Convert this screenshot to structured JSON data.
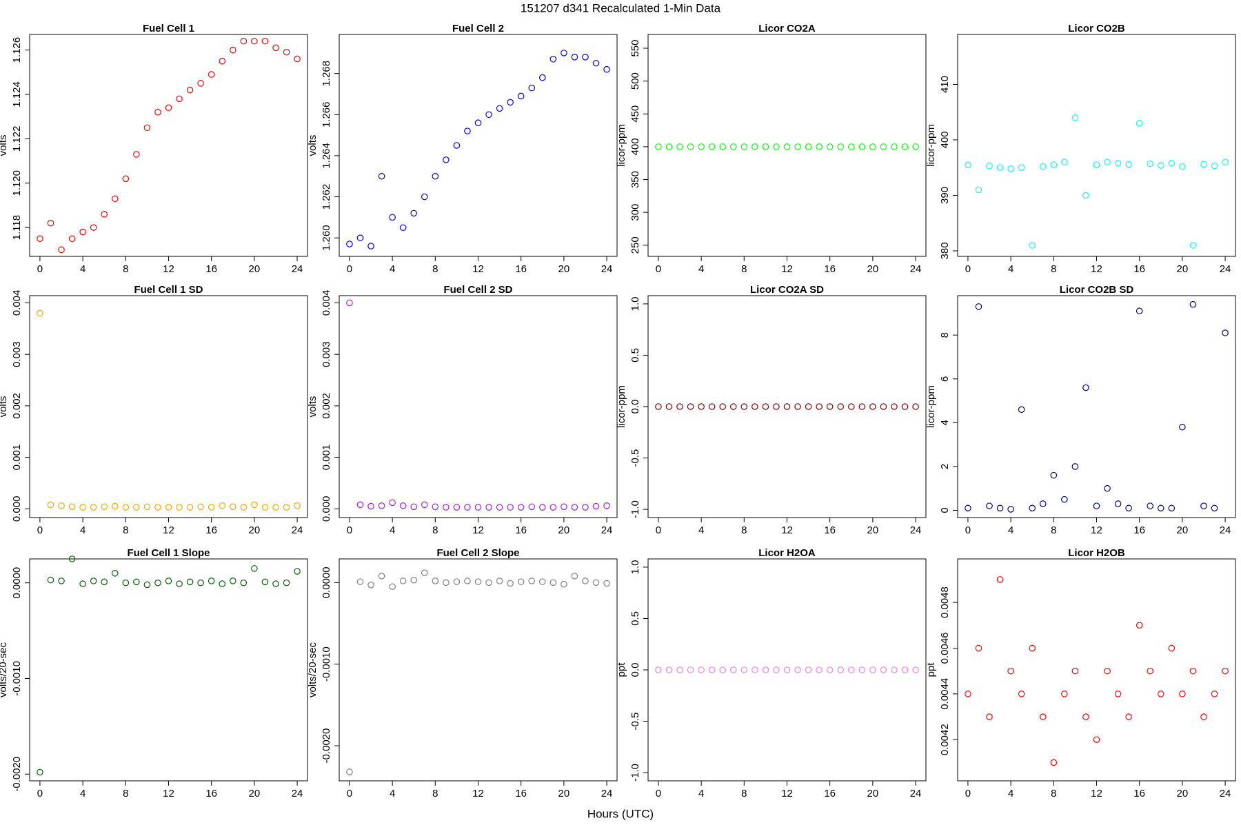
{
  "title": "151207   d341   Recalculated 1-Min Data",
  "x_label": "Hours (UTC)",
  "chart_data": [
    {
      "type": "scatter",
      "title": "Fuel Cell 1",
      "y_label": "volts",
      "color": "#ff0000",
      "x": [
        0,
        1,
        2,
        3,
        4,
        5,
        6,
        7,
        8,
        9,
        10,
        11,
        12,
        13,
        14,
        15,
        16,
        17,
        18,
        19,
        20,
        21,
        22,
        23,
        24
      ],
      "values": [
        1.1175,
        1.1182,
        1.117,
        1.1175,
        1.1178,
        1.118,
        1.1186,
        1.1193,
        1.1202,
        1.1213,
        1.1225,
        1.1232,
        1.1234,
        1.1238,
        1.1242,
        1.1245,
        1.1249,
        1.1255,
        1.126,
        1.1264,
        1.1264,
        1.1264,
        1.1261,
        1.1259,
        1.1256
      ],
      "xlim": [
        -0.96,
        24.96
      ],
      "xticks": [
        0,
        4,
        8,
        12,
        16,
        20,
        24
      ],
      "ylim": [
        1.1167,
        1.1267
      ],
      "yticks": [
        1.118,
        {
          "value": 1.12,
          "label": "1.120"
        },
        1.122,
        1.124,
        1.126
      ]
    },
    {
      "type": "scatter",
      "title": "Fuel Cell 2",
      "y_label": "volts",
      "color": "#0000ff",
      "x": [
        0,
        1,
        2,
        3,
        4,
        5,
        6,
        7,
        8,
        9,
        10,
        11,
        12,
        13,
        14,
        15,
        16,
        17,
        18,
        19,
        20,
        21,
        22,
        23,
        24
      ],
      "values": [
        1.2597,
        1.26,
        1.2596,
        1.263,
        1.261,
        1.2605,
        1.2612,
        1.262,
        1.263,
        1.2638,
        1.2645,
        1.2652,
        1.2656,
        1.266,
        1.2663,
        1.2666,
        1.2669,
        1.2673,
        1.2678,
        1.2687,
        1.269,
        1.2688,
        1.2688,
        1.2685,
        1.2682
      ],
      "xlim": [
        -0.96,
        24.96
      ],
      "xticks": [
        0,
        4,
        8,
        12,
        16,
        20,
        24
      ],
      "ylim": [
        1.2591,
        1.2699
      ],
      "yticks": [
        {
          "value": 1.26,
          "label": "1.260"
        },
        1.262,
        1.264,
        1.266,
        1.268
      ]
    },
    {
      "type": "scatter",
      "title": "Licor CO2A",
      "y_label": "licor-ppm",
      "color": "#00ff00",
      "x": [
        0,
        1,
        2,
        3,
        4,
        5,
        6,
        7,
        8,
        9,
        10,
        11,
        12,
        13,
        14,
        15,
        16,
        17,
        18,
        19,
        20,
        21,
        22,
        23,
        24
      ],
      "values": [
        400,
        400,
        400,
        400,
        400,
        400,
        400,
        400,
        400,
        400,
        400,
        400,
        400,
        400,
        400,
        400,
        400,
        400,
        400,
        400,
        400,
        400,
        400,
        400,
        400
      ],
      "xlim": [
        -0.96,
        24.96
      ],
      "xticks": [
        0,
        4,
        8,
        12,
        16,
        20,
        24
      ],
      "ylim": [
        233,
        571
      ],
      "yticks": [
        250,
        300,
        350,
        400,
        450,
        500,
        550
      ]
    },
    {
      "type": "scatter",
      "title": "Licor CO2B",
      "y_label": "licor-ppm",
      "color": "#00ffff",
      "x": [
        0,
        1,
        2,
        3,
        4,
        5,
        6,
        7,
        8,
        9,
        10,
        11,
        12,
        13,
        14,
        15,
        16,
        17,
        18,
        19,
        20,
        21,
        22,
        23,
        24
      ],
      "values": [
        395.5,
        391,
        395.3,
        395,
        394.8,
        395,
        381,
        395.2,
        395.5,
        396,
        404,
        390,
        395.5,
        396,
        395.8,
        395.6,
        403,
        395.7,
        395.4,
        395.8,
        395.2,
        381,
        395.6,
        395.3,
        396
      ],
      "xlim": [
        -0.96,
        24.96
      ],
      "xticks": [
        0,
        4,
        8,
        12,
        16,
        20,
        24
      ],
      "ylim": [
        379,
        419
      ],
      "yticks": [
        380,
        390,
        400,
        410
      ]
    },
    {
      "type": "scatter",
      "title": "Fuel Cell 1 SD",
      "y_label": "volts",
      "color": "#ffa500",
      "x": [
        0,
        1,
        2,
        3,
        4,
        5,
        6,
        7,
        8,
        9,
        10,
        11,
        12,
        13,
        14,
        15,
        16,
        17,
        18,
        19,
        20,
        21,
        22,
        23,
        24
      ],
      "values": [
        0.0038,
        8e-05,
        6e-05,
        4e-05,
        3e-05,
        3e-05,
        4e-05,
        5e-05,
        3e-05,
        3e-05,
        4e-05,
        3e-05,
        3e-05,
        3e-05,
        3e-05,
        4e-05,
        3e-05,
        6e-05,
        4e-05,
        3e-05,
        8e-05,
        3e-05,
        3e-05,
        3e-05,
        6e-05
      ],
      "xlim": [
        -0.96,
        24.96
      ],
      "xticks": [
        0,
        4,
        8,
        12,
        16,
        20,
        24
      ],
      "ylim": [
        -0.00017,
        0.00414
      ],
      "yticks": [
        {
          "value": 0,
          "label": "0.000"
        },
        0.001,
        0.002,
        0.003,
        0.004
      ]
    },
    {
      "type": "scatter",
      "title": "Fuel Cell 2 SD",
      "y_label": "volts",
      "color": "#a020f0",
      "x": [
        0,
        1,
        2,
        3,
        4,
        5,
        6,
        7,
        8,
        9,
        10,
        11,
        12,
        13,
        14,
        15,
        16,
        17,
        18,
        19,
        20,
        21,
        22,
        23,
        24
      ],
      "values": [
        0.004,
        8e-05,
        5e-05,
        6e-05,
        0.00012,
        6e-05,
        4e-05,
        8e-05,
        4e-05,
        3e-05,
        3e-05,
        3e-05,
        3e-05,
        3e-05,
        3e-05,
        3e-05,
        3e-05,
        4e-05,
        3e-05,
        3e-05,
        4e-05,
        3e-05,
        3e-05,
        5e-05,
        6e-05
      ],
      "xlim": [
        -0.96,
        24.96
      ],
      "xticks": [
        0,
        4,
        8,
        12,
        16,
        20,
        24
      ],
      "ylim": [
        -0.00017,
        0.00414
      ],
      "yticks": [
        {
          "value": 0,
          "label": "0.000"
        },
        0.001,
        0.002,
        0.003,
        0.004
      ]
    },
    {
      "type": "scatter",
      "title": "Licor CO2A SD",
      "y_label": "licor-ppm",
      "color": "#8b0000",
      "x": [
        0,
        1,
        2,
        3,
        4,
        5,
        6,
        7,
        8,
        9,
        10,
        11,
        12,
        13,
        14,
        15,
        16,
        17,
        18,
        19,
        20,
        21,
        22,
        23,
        24
      ],
      "values": [
        0,
        0,
        0,
        0,
        0,
        0,
        0,
        0,
        0,
        0,
        0,
        0,
        0,
        0,
        0,
        0,
        0,
        0,
        0,
        0,
        0,
        0,
        0,
        0,
        0
      ],
      "xlim": [
        -0.96,
        24.96
      ],
      "xticks": [
        0,
        4,
        8,
        12,
        16,
        20,
        24
      ],
      "ylim": [
        -1.08,
        1.08
      ],
      "yticks": [
        {
          "value": -1,
          "label": "-1.0"
        },
        -0.5,
        {
          "value": 0,
          "label": "0.0"
        },
        0.5,
        {
          "value": 1,
          "label": "1.0"
        }
      ]
    },
    {
      "type": "scatter",
      "title": "Licor CO2B SD",
      "y_label": "licor-ppm",
      "color": "#000080",
      "x": [
        0,
        1,
        2,
        3,
        4,
        5,
        6,
        7,
        8,
        9,
        10,
        11,
        12,
        13,
        14,
        15,
        16,
        17,
        18,
        19,
        20,
        21,
        22,
        23,
        24
      ],
      "values": [
        0.1,
        9.3,
        0.2,
        0.1,
        0.05,
        4.6,
        0.1,
        0.3,
        1.6,
        0.5,
        2,
        5.6,
        0.2,
        1,
        0.3,
        0.1,
        9.1,
        0.2,
        0.1,
        0.1,
        3.8,
        9.4,
        0.2,
        0.1,
        8.1
      ],
      "xlim": [
        -0.96,
        24.96
      ],
      "xticks": [
        0,
        4,
        8,
        12,
        16,
        20,
        24
      ],
      "ylim": [
        -0.33,
        9.8
      ],
      "yticks": [
        0,
        2,
        4,
        6,
        8
      ]
    },
    {
      "type": "scatter",
      "title": "Fuel Cell 1 Slope",
      "y_label": "volts/20-sec",
      "color": "#006400",
      "x": [
        0,
        1,
        2,
        3,
        4,
        5,
        6,
        7,
        8,
        9,
        10,
        11,
        12,
        13,
        14,
        15,
        16,
        17,
        18,
        19,
        20,
        21,
        22,
        23,
        24
      ],
      "values": [
        -0.00198,
        3e-05,
        2e-05,
        0.00025,
        -1e-05,
        2e-05,
        1e-05,
        0.0001,
        0,
        1e-05,
        -2e-05,
        0,
        2e-05,
        -1e-05,
        1e-05,
        0,
        2e-05,
        -1e-05,
        2e-05,
        0,
        0.00015,
        1e-05,
        -1e-05,
        0,
        0.00012
      ],
      "xlim": [
        -0.96,
        24.96
      ],
      "xticks": [
        0,
        4,
        8,
        12,
        16,
        20,
        24
      ],
      "ylim": [
        -0.00207,
        0.00025
      ],
      "yticks": [
        {
          "value": -0.002,
          "label": "-0.0020"
        },
        {
          "value": -0.001,
          "label": "-0.0010"
        },
        {
          "value": 0,
          "label": "0.0000"
        }
      ]
    },
    {
      "type": "scatter",
      "title": "Fuel Cell 2 Slope",
      "y_label": "volts/20-sec",
      "color": "#7f7f7f",
      "x": [
        0,
        1,
        2,
        3,
        4,
        5,
        6,
        7,
        8,
        9,
        10,
        11,
        12,
        13,
        14,
        15,
        16,
        17,
        18,
        19,
        20,
        21,
        22,
        23,
        24
      ],
      "values": [
        -0.00232,
        1e-05,
        -3e-05,
        8e-05,
        -5e-05,
        2e-05,
        3e-05,
        0.00012,
        2e-05,
        0,
        1e-05,
        2e-05,
        1e-05,
        0,
        2e-05,
        -1e-05,
        1e-05,
        2e-05,
        1e-05,
        0,
        -2e-05,
        8e-05,
        2e-05,
        0,
        -1e-05
      ],
      "xlim": [
        -0.96,
        24.96
      ],
      "xticks": [
        0,
        4,
        8,
        12,
        16,
        20,
        24
      ],
      "ylim": [
        -0.00243,
        0.00029
      ],
      "yticks": [
        {
          "value": -0.002,
          "label": "-0.0020"
        },
        {
          "value": -0.001,
          "label": "-0.0010"
        },
        {
          "value": 0,
          "label": "0.0000"
        }
      ]
    },
    {
      "type": "scatter",
      "title": "Licor H2OA",
      "y_label": "ppt",
      "color": "#ee82ee",
      "x": [
        0,
        1,
        2,
        3,
        4,
        5,
        6,
        7,
        8,
        9,
        10,
        11,
        12,
        13,
        14,
        15,
        16,
        17,
        18,
        19,
        20,
        21,
        22,
        23,
        24
      ],
      "values": [
        0,
        0,
        0,
        0,
        0,
        0,
        0,
        0,
        0,
        0,
        0,
        0,
        0,
        0,
        0,
        0,
        0,
        0,
        0,
        0,
        0,
        0,
        0,
        0,
        0
      ],
      "xlim": [
        -0.96,
        24.96
      ],
      "xticks": [
        0,
        4,
        8,
        12,
        16,
        20,
        24
      ],
      "ylim": [
        -1.08,
        1.08
      ],
      "yticks": [
        {
          "value": -1,
          "label": "-1.0"
        },
        -0.5,
        {
          "value": 0,
          "label": "0.0"
        },
        0.5,
        {
          "value": 1,
          "label": "1.0"
        }
      ]
    },
    {
      "type": "scatter",
      "title": "Licor H2OB",
      "y_label": "ppt",
      "color": "#ff0000",
      "x": [
        0,
        1,
        2,
        3,
        4,
        5,
        6,
        7,
        8,
        9,
        10,
        11,
        12,
        13,
        14,
        15,
        16,
        17,
        18,
        19,
        20,
        21,
        22,
        23,
        24
      ],
      "values": [
        0.0044,
        0.0046,
        0.0043,
        0.0049,
        0.0045,
        0.0044,
        0.0046,
        0.0043,
        0.0041,
        0.0044,
        0.0045,
        0.0043,
        0.0042,
        0.0045,
        0.0044,
        0.0043,
        0.0047,
        0.0045,
        0.0044,
        0.0046,
        0.0044,
        0.0045,
        0.0043,
        0.0044,
        0.0045
      ],
      "xlim": [
        -0.96,
        24.96
      ],
      "xticks": [
        0,
        4,
        8,
        12,
        16,
        20,
        24
      ],
      "ylim": [
        0.00402,
        0.00499
      ],
      "yticks": [
        0.0042,
        0.0044,
        0.0046,
        0.0048
      ]
    }
  ]
}
